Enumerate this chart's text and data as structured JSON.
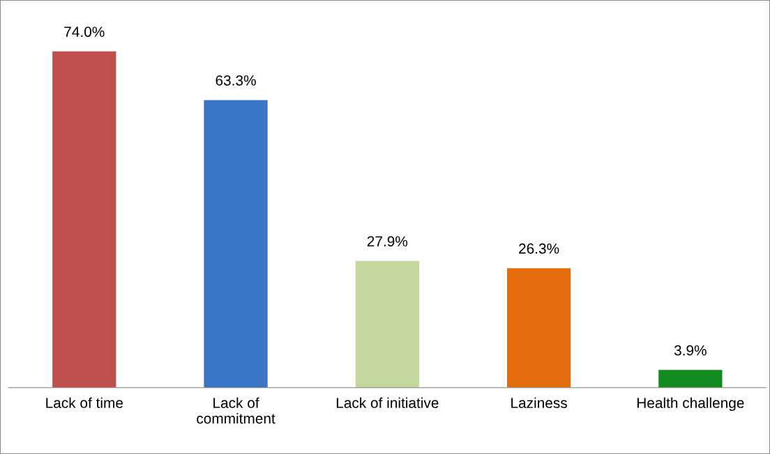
{
  "chart_data": {
    "type": "bar",
    "categories": [
      "Lack of time",
      "Lack of\ncommitment",
      "Lack of initiative",
      "Laziness",
      "Health challenge"
    ],
    "values": [
      74.0,
      63.3,
      27.9,
      26.3,
      3.9
    ],
    "colors": [
      "#c0504d",
      "#3a74c4",
      "#c3d69b",
      "#e46c0a",
      "#128a1e"
    ],
    "value_labels": [
      "74.0%",
      "63.3%",
      "27.9%",
      "26.3%",
      "3.9%"
    ],
    "grid": false,
    "legend": false
  }
}
